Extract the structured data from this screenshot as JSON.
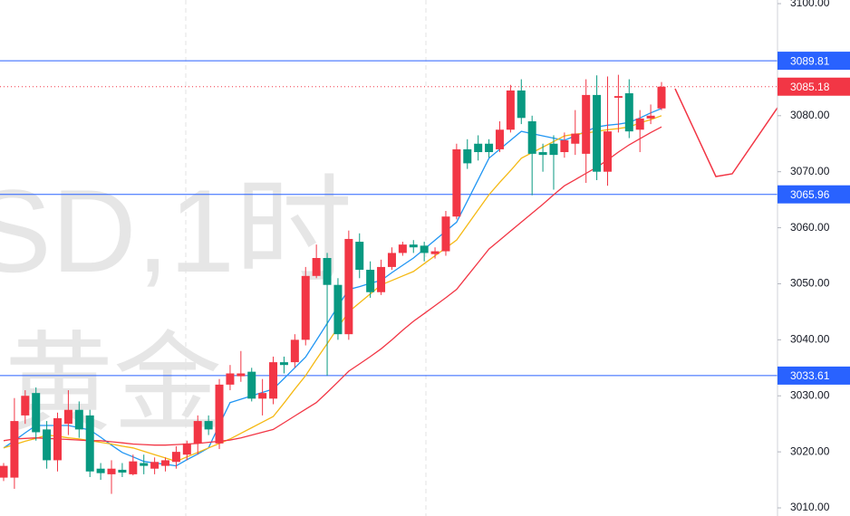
{
  "chart_data": {
    "type": "candlestick",
    "watermark": [
      "SD,1时",
      "黄金"
    ],
    "open": [
      3015.4,
      3015.4,
      3026.5,
      3030.5,
      3024,
      3018.5,
      3025,
      3027.5,
      3026.5,
      3017,
      3016,
      3016.8,
      3016,
      3018,
      3017,
      3017.5,
      3018.2,
      3019.5,
      3021.5,
      3025.5,
      3021.5,
      3032,
      3033.5,
      3034.3,
      3029.5,
      3029.5,
      3036,
      3036,
      3040,
      3051.4,
      3054.6,
      3049.8,
      3041,
      3057.5,
      3052.5,
      3048.5,
      3053,
      3055.5,
      3057,
      3056.8,
      3055.3,
      3055.8,
      3062,
      3074,
      3075,
      3075,
      3074,
      3077.5,
      3084.5,
      3079,
      3073.5,
      3075,
      3073.5,
      3075,
      3073.2,
      3083.7,
      3070,
      3083.2,
      3084,
      3077.5,
      3079.5,
      3081.3
    ],
    "high": [
      3018,
      3029.6,
      3031,
      3031.5,
      3025.5,
      3027,
      3031,
      3029,
      3027.5,
      3018,
      3018.5,
      3018,
      3019.5,
      3019.5,
      3019,
      3019,
      3021,
      3022,
      3026.5,
      3026.5,
      3033,
      3035.5,
      3038,
      3035,
      3033,
      3037,
      3037,
      3041,
      3053,
      3057,
      3055.5,
      3051,
      3059.5,
      3059,
      3054,
      3054.3,
      3056.5,
      3057.5,
      3057.8,
      3057.5,
      3056.5,
      3063,
      3075,
      3075.8,
      3076.5,
      3075.8,
      3079,
      3085.5,
      3086.5,
      3080,
      3075,
      3076.5,
      3077,
      3081,
      3086.5,
      3087.2,
      3087,
      3087.3,
      3086.5,
      3081,
      3082,
      3086
    ],
    "low": [
      3014.8,
      3013.4,
      3025,
      3022,
      3017,
      3016.5,
      3023,
      3022.5,
      3015.5,
      3015,
      3012.5,
      3015.5,
      3015.8,
      3016,
      3016,
      3016.5,
      3017,
      3018.5,
      3019.5,
      3023,
      3020.5,
      3031,
      3032.5,
      3029,
      3026.5,
      3028.5,
      3034,
      3035,
      3039,
      3051,
      3033.61,
      3040,
      3040,
      3051,
      3047.5,
      3048,
      3052.5,
      3055,
      3055.5,
      3054,
      3054.5,
      3055,
      3061.5,
      3070.5,
      3072,
      3072.5,
      3073.5,
      3077,
      3078.5,
      3065.8,
      3070,
      3066.8,
      3072.5,
      3073,
      3068,
      3068.5,
      3067.5,
      3077,
      3076,
      3073.5,
      3078.5,
      3081
    ],
    "close": [
      3017.5,
      3025.5,
      3030,
      3023.5,
      3018.5,
      3026,
      3027.5,
      3024,
      3016.5,
      3016.2,
      3017,
      3016.3,
      3018.3,
      3017.5,
      3018.2,
      3018.5,
      3020,
      3021.5,
      3025.5,
      3024,
      3032,
      3034,
      3034,
      3029.5,
      3030.5,
      3036,
      3035.5,
      3040,
      3051.4,
      3054.6,
      3049.8,
      3041,
      3058,
      3052.5,
      3048.5,
      3053,
      3055.5,
      3057,
      3056.5,
      3055.5,
      3055.8,
      3062,
      3074,
      3071.5,
      3073.5,
      3073.5,
      3077.5,
      3084.5,
      3079.6,
      3073.2,
      3073,
      3073,
      3075.6,
      3076.8,
      3083.7,
      3070,
      3077.2,
      3083.5,
      3077.2,
      3079.5,
      3080,
      3085.18
    ],
    "up_color": "#f23645",
    "down_color": "#089981",
    "series": [
      {
        "color": "#2196f3",
        "values": [
          3020.7,
          3022,
          3023.4,
          3024.7,
          3024.7,
          3024.7,
          3024.7,
          3024.3,
          3023.9,
          3022.6,
          3021.2,
          3019.9,
          3019.1,
          3018.3,
          3018,
          3017.8,
          3017.5,
          3018.6,
          3019.6,
          3020.7,
          3024.8,
          3028.8,
          3029.4,
          3030,
          3030.6,
          3031.2,
          3033.1,
          3035,
          3036.9,
          3039.9,
          3042.9,
          3046,
          3049,
          3049.5,
          3050.1,
          3050.6,
          3052,
          3053.3,
          3054.6,
          3056.2,
          3057.8,
          3059.4,
          3061,
          3064.8,
          3068.6,
          3072.4,
          3074,
          3075.6,
          3077.2,
          3076.8,
          3076.4,
          3076,
          3075.6,
          3076.4,
          3077.2,
          3078,
          3078.3,
          3078.5,
          3078.8,
          3079.6,
          3080.5,
          3081.3
        ]
      },
      {
        "color": "#f5b914",
        "values": [
          3020.7,
          3021.3,
          3021.9,
          3022.4,
          3023,
          3022.8,
          3022.5,
          3022.3,
          3022,
          3021.7,
          3021.4,
          3021,
          3020.7,
          3020.1,
          3019.5,
          3018.9,
          3018.3,
          3019.1,
          3019.9,
          3020.7,
          3021.5,
          3022.3,
          3023.3,
          3024.3,
          3025.3,
          3026.3,
          3028.7,
          3031.2,
          3033.6,
          3036.5,
          3039.3,
          3042.2,
          3045,
          3046.6,
          3048.2,
          3049.8,
          3050.6,
          3051.4,
          3052.2,
          3053.6,
          3055,
          3056.4,
          3057.8,
          3060.5,
          3063.2,
          3065.9,
          3068.1,
          3070.2,
          3072.4,
          3073.4,
          3074.4,
          3075.4,
          3076.4,
          3076.7,
          3076.9,
          3077.2,
          3077.5,
          3077.7,
          3078,
          3078.7,
          3079.3,
          3080
        ]
      },
      {
        "color": "#f23645",
        "values": [
          3022,
          3022.3,
          3022.4,
          3022.5,
          3022.4,
          3022.3,
          3022.2,
          3022.1,
          3022,
          3022,
          3021.8,
          3021.6,
          3021.4,
          3021.3,
          3021.2,
          3021.2,
          3021.3,
          3021.4,
          3021.5,
          3021.7,
          3021.9,
          3022.1,
          3022.5,
          3023,
          3023.5,
          3024,
          3025.2,
          3026.4,
          3027.6,
          3028.8,
          3030.6,
          3032.5,
          3034.4,
          3035.7,
          3037,
          3038.4,
          3040,
          3041.7,
          3043.3,
          3044.7,
          3046.1,
          3047.5,
          3049,
          3051.4,
          3053.8,
          3056.2,
          3057.8,
          3059.4,
          3061,
          3062.6,
          3064.2,
          3065.9,
          3067.5,
          3068.6,
          3069.7,
          3070.8,
          3072.1,
          3073.5,
          3074.8,
          3075.9,
          3077,
          3078
        ]
      }
    ],
    "hlines": [
      {
        "value": 3089.81,
        "label": "3089.81",
        "color": "#2962ff"
      },
      {
        "value": 3065.96,
        "label": "3065.96",
        "color": "#2962ff"
      },
      {
        "value": 3033.61,
        "label": "3033.61",
        "color": "#2962ff"
      }
    ],
    "last_price": {
      "value": 3085.18,
      "label": "3085.18",
      "color": "#f23645"
    },
    "ylim": [
      3008.55,
      3100.65
    ],
    "yticks": [
      {
        "value": 3100,
        "label": "3100.00"
      },
      {
        "value": 3080,
        "label": "3080.00"
      },
      {
        "value": 3070,
        "label": "3070.00"
      },
      {
        "value": 3060,
        "label": "3060.00"
      },
      {
        "value": 3050,
        "label": "3050.00"
      },
      {
        "value": 3040,
        "label": "3040.00"
      },
      {
        "value": 3030,
        "label": "3030.00"
      },
      {
        "value": 3020,
        "label": "3020.00"
      },
      {
        "value": 3010,
        "label": "3010.00"
      }
    ]
  }
}
